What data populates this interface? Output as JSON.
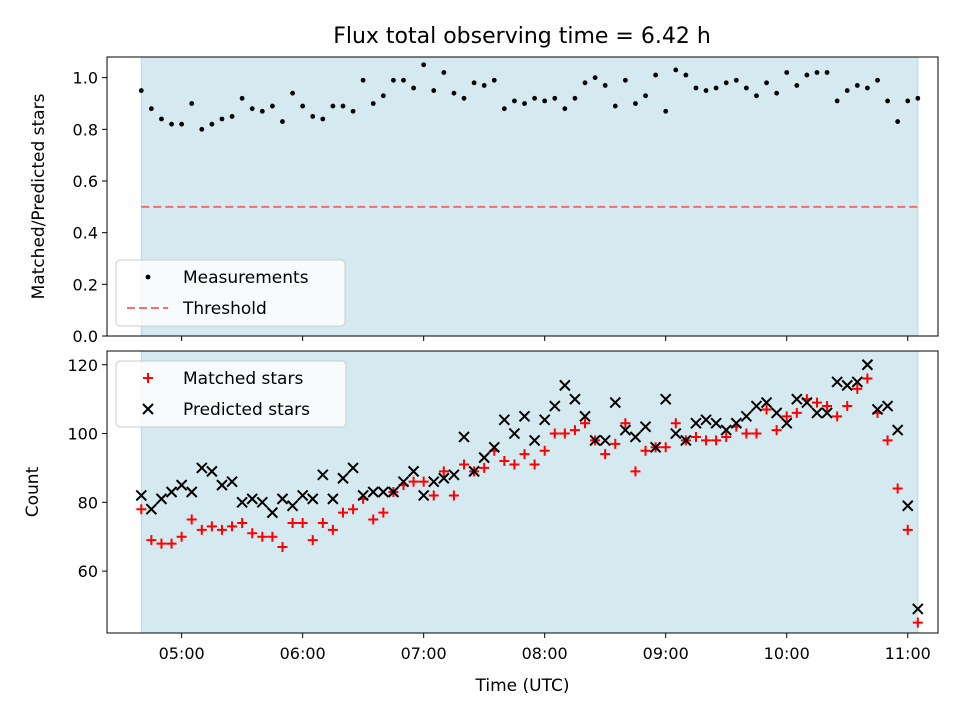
{
  "title": "Flux total observing time = 6.42 h",
  "chart_data": [
    {
      "type": "scatter",
      "title": "Flux total observing time = 6.42 h",
      "ylabel": "Matched/Predicted stars",
      "xlabel": "",
      "xlim": [
        "04:23",
        "11:15"
      ],
      "ylim": [
        0,
        1.08
      ],
      "yticks": [
        "0.0",
        "0.2",
        "0.4",
        "0.6",
        "0.8",
        "1.0"
      ],
      "observing_window": [
        "04:40",
        "11:05"
      ],
      "observing_window_color": "#d4eaf0",
      "legend": {
        "position": "lower left",
        "entries": [
          "Measurements",
          "Threshold"
        ]
      },
      "threshold": {
        "name": "Threshold",
        "value": 0.5,
        "color": "#f07070",
        "style": "dashed"
      },
      "series": [
        {
          "name": "Measurements",
          "color": "#000000",
          "marker": "dot",
          "x": [
            "04:40",
            "04:45",
            "04:50",
            "04:55",
            "05:00",
            "05:05",
            "05:10",
            "05:15",
            "05:20",
            "05:25",
            "05:30",
            "05:35",
            "05:40",
            "05:45",
            "05:50",
            "05:55",
            "06:00",
            "06:05",
            "06:10",
            "06:15",
            "06:20",
            "06:25",
            "06:30",
            "06:35",
            "06:40",
            "06:45",
            "06:50",
            "06:55",
            "07:00",
            "07:05",
            "07:10",
            "07:15",
            "07:20",
            "07:25",
            "07:30",
            "07:35",
            "07:40",
            "07:45",
            "07:50",
            "07:55",
            "08:00",
            "08:05",
            "08:10",
            "08:15",
            "08:20",
            "08:25",
            "08:30",
            "08:35",
            "08:40",
            "08:45",
            "08:50",
            "08:55",
            "09:00",
            "09:05",
            "09:10",
            "09:15",
            "09:20",
            "09:25",
            "09:30",
            "09:35",
            "09:40",
            "09:45",
            "09:50",
            "09:55",
            "10:00",
            "10:05",
            "10:10",
            "10:15",
            "10:20",
            "10:25",
            "10:30",
            "10:35",
            "10:40",
            "10:45",
            "10:50",
            "10:55",
            "11:00",
            "11:05"
          ],
          "y": [
            0.95,
            0.88,
            0.84,
            0.82,
            0.82,
            0.9,
            0.8,
            0.82,
            0.84,
            0.85,
            0.92,
            0.88,
            0.87,
            0.89,
            0.83,
            0.94,
            0.89,
            0.85,
            0.84,
            0.89,
            0.89,
            0.87,
            0.99,
            0.9,
            0.93,
            0.99,
            0.99,
            0.96,
            1.05,
            0.95,
            1.02,
            0.94,
            0.92,
            0.98,
            0.97,
            0.99,
            0.88,
            0.91,
            0.9,
            0.92,
            0.91,
            0.92,
            0.88,
            0.92,
            0.98,
            1.0,
            0.97,
            0.89,
            0.99,
            0.9,
            0.93,
            1.01,
            0.87,
            1.03,
            1.01,
            0.96,
            0.95,
            0.96,
            0.98,
            0.99,
            0.96,
            0.93,
            0.98,
            0.94,
            1.02,
            0.97,
            1.01,
            1.02,
            1.02,
            0.91,
            0.95,
            0.97,
            0.96,
            0.99,
            0.91,
            0.83,
            0.91,
            0.92
          ]
        }
      ]
    },
    {
      "type": "scatter",
      "title": "",
      "xlabel": "Time (UTC)",
      "ylabel": "Count",
      "xlim": [
        "04:23",
        "11:15"
      ],
      "ylim": [
        42,
        124
      ],
      "xticks": [
        "05:00",
        "06:00",
        "07:00",
        "08:00",
        "09:00",
        "10:00",
        "11:00"
      ],
      "yticks": [
        "60",
        "80",
        "100",
        "120"
      ],
      "observing_window": [
        "04:40",
        "11:05"
      ],
      "observing_window_color": "#d4eaf0",
      "legend": {
        "position": "upper left",
        "entries": [
          "Matched stars",
          "Predicted stars"
        ]
      },
      "series": [
        {
          "name": "Matched stars",
          "color": "#ff0000",
          "marker": "plus",
          "x": [
            "04:40",
            "04:45",
            "04:50",
            "04:55",
            "05:00",
            "05:05",
            "05:10",
            "05:15",
            "05:20",
            "05:25",
            "05:30",
            "05:35",
            "05:40",
            "05:45",
            "05:50",
            "05:55",
            "06:00",
            "06:05",
            "06:10",
            "06:15",
            "06:20",
            "06:25",
            "06:30",
            "06:35",
            "06:40",
            "06:45",
            "06:50",
            "06:55",
            "07:00",
            "07:05",
            "07:10",
            "07:15",
            "07:20",
            "07:25",
            "07:30",
            "07:35",
            "07:40",
            "07:45",
            "07:50",
            "07:55",
            "08:00",
            "08:05",
            "08:10",
            "08:15",
            "08:20",
            "08:25",
            "08:30",
            "08:35",
            "08:40",
            "08:45",
            "08:50",
            "08:55",
            "09:00",
            "09:05",
            "09:10",
            "09:15",
            "09:20",
            "09:25",
            "09:30",
            "09:35",
            "09:40",
            "09:45",
            "09:50",
            "09:55",
            "10:00",
            "10:05",
            "10:10",
            "10:15",
            "10:20",
            "10:25",
            "10:30",
            "10:35",
            "10:40",
            "10:45",
            "10:50",
            "10:55",
            "11:00",
            "11:05"
          ],
          "y": [
            78,
            69,
            68,
            68,
            70,
            75,
            72,
            73,
            72,
            73,
            74,
            71,
            70,
            70,
            67,
            74,
            74,
            69,
            74,
            72,
            77,
            78,
            81,
            75,
            77,
            83,
            85,
            86,
            86,
            82,
            89,
            82,
            91,
            89,
            90,
            95,
            92,
            91,
            94,
            91,
            95,
            100,
            100,
            101,
            103,
            98,
            94,
            97,
            103,
            89,
            95,
            96,
            96,
            103,
            98,
            99,
            98,
            98,
            99,
            102,
            100,
            100,
            107,
            101,
            105,
            106,
            110,
            109,
            108,
            105,
            108,
            113,
            116,
            106,
            98,
            84,
            72,
            45
          ]
        },
        {
          "name": "Predicted stars",
          "color": "#000000",
          "marker": "x",
          "x": [
            "04:40",
            "04:45",
            "04:50",
            "04:55",
            "05:00",
            "05:05",
            "05:10",
            "05:15",
            "05:20",
            "05:25",
            "05:30",
            "05:35",
            "05:40",
            "05:45",
            "05:50",
            "05:55",
            "06:00",
            "06:05",
            "06:10",
            "06:15",
            "06:20",
            "06:25",
            "06:30",
            "06:35",
            "06:40",
            "06:45",
            "06:50",
            "06:55",
            "07:00",
            "07:05",
            "07:10",
            "07:15",
            "07:20",
            "07:25",
            "07:30",
            "07:35",
            "07:40",
            "07:45",
            "07:50",
            "07:55",
            "08:00",
            "08:05",
            "08:10",
            "08:15",
            "08:20",
            "08:25",
            "08:30",
            "08:35",
            "08:40",
            "08:45",
            "08:50",
            "08:55",
            "09:00",
            "09:05",
            "09:10",
            "09:15",
            "09:20",
            "09:25",
            "09:30",
            "09:35",
            "09:40",
            "09:45",
            "09:50",
            "09:55",
            "10:00",
            "10:05",
            "10:10",
            "10:15",
            "10:20",
            "10:25",
            "10:30",
            "10:35",
            "10:40",
            "10:45",
            "10:50",
            "10:55",
            "11:00",
            "11:05"
          ],
          "y": [
            82,
            78,
            81,
            83,
            85,
            83,
            90,
            89,
            85,
            86,
            80,
            81,
            80,
            77,
            81,
            79,
            82,
            81,
            88,
            81,
            87,
            90,
            82,
            83,
            83,
            83,
            86,
            89,
            82,
            86,
            87,
            88,
            99,
            89,
            93,
            96,
            104,
            100,
            105,
            98,
            104,
            108,
            114,
            110,
            105,
            98,
            98,
            109,
            101,
            99,
            102,
            96,
            110,
            100,
            98,
            103,
            104,
            103,
            101,
            103,
            105,
            108,
            109,
            106,
            103,
            110,
            109,
            106,
            106,
            115,
            114,
            115,
            120,
            107,
            108,
            101,
            79,
            49
          ]
        }
      ]
    }
  ]
}
